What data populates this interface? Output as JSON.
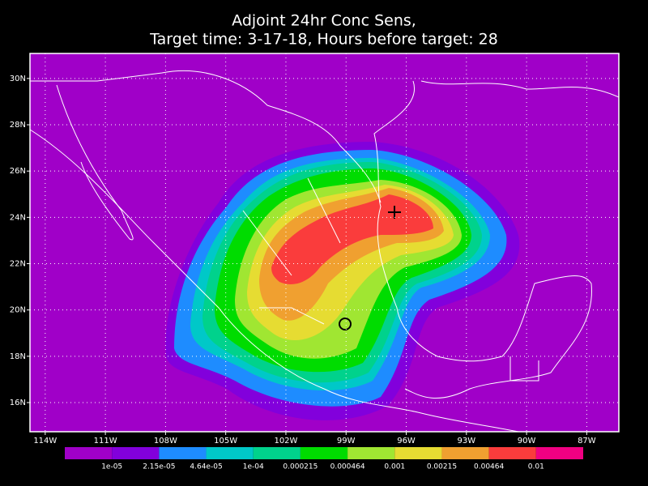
{
  "title": [
    "Adjoint 24hr Conc Sens,",
    "Target time: 3-17-18, Hours before target: 28"
  ],
  "map": {
    "xlim": [
      -114.76,
      -85.4
    ],
    "ylim": [
      14.74,
      31.08
    ],
    "xticks": [
      {
        "value": -114,
        "label": "114W"
      },
      {
        "value": -111,
        "label": "111W"
      },
      {
        "value": -108,
        "label": "108W"
      },
      {
        "value": -105,
        "label": "105W"
      },
      {
        "value": -102,
        "label": "102W"
      },
      {
        "value": -99,
        "label": "99W"
      },
      {
        "value": -96,
        "label": "96W"
      },
      {
        "value": -93,
        "label": "93W"
      },
      {
        "value": -90,
        "label": "90W"
      },
      {
        "value": -87,
        "label": "87W"
      }
    ],
    "yticks": [
      {
        "value": 16,
        "label": "16N"
      },
      {
        "value": 18,
        "label": "18N"
      },
      {
        "value": 20,
        "label": "20N"
      },
      {
        "value": 22,
        "label": "22N"
      },
      {
        "value": 24,
        "label": "24N"
      },
      {
        "value": 26,
        "label": "26N"
      },
      {
        "value": 28,
        "label": "28N"
      },
      {
        "value": 30,
        "label": "30N"
      }
    ],
    "grid": true
  },
  "colorbar": {
    "colors": [
      "#a000c8",
      "#8200dc",
      "#1e8cff",
      "#00c8c8",
      "#00d28c",
      "#00dc00",
      "#a0e632",
      "#e6dc32",
      "#f0a030",
      "#fa3c3c",
      "#f00082"
    ],
    "levels": [
      {
        "value": 1e-05,
        "label": "1e-05"
      },
      {
        "value": 2.15e-05,
        "label": "2.15e-05"
      },
      {
        "value": 4.64e-05,
        "label": "4.64e-05"
      },
      {
        "value": 0.0001,
        "label": "1e-04"
      },
      0.000215,
      0.000464,
      0.001,
      0.00215,
      0.00464,
      0.01
    ]
  }
}
